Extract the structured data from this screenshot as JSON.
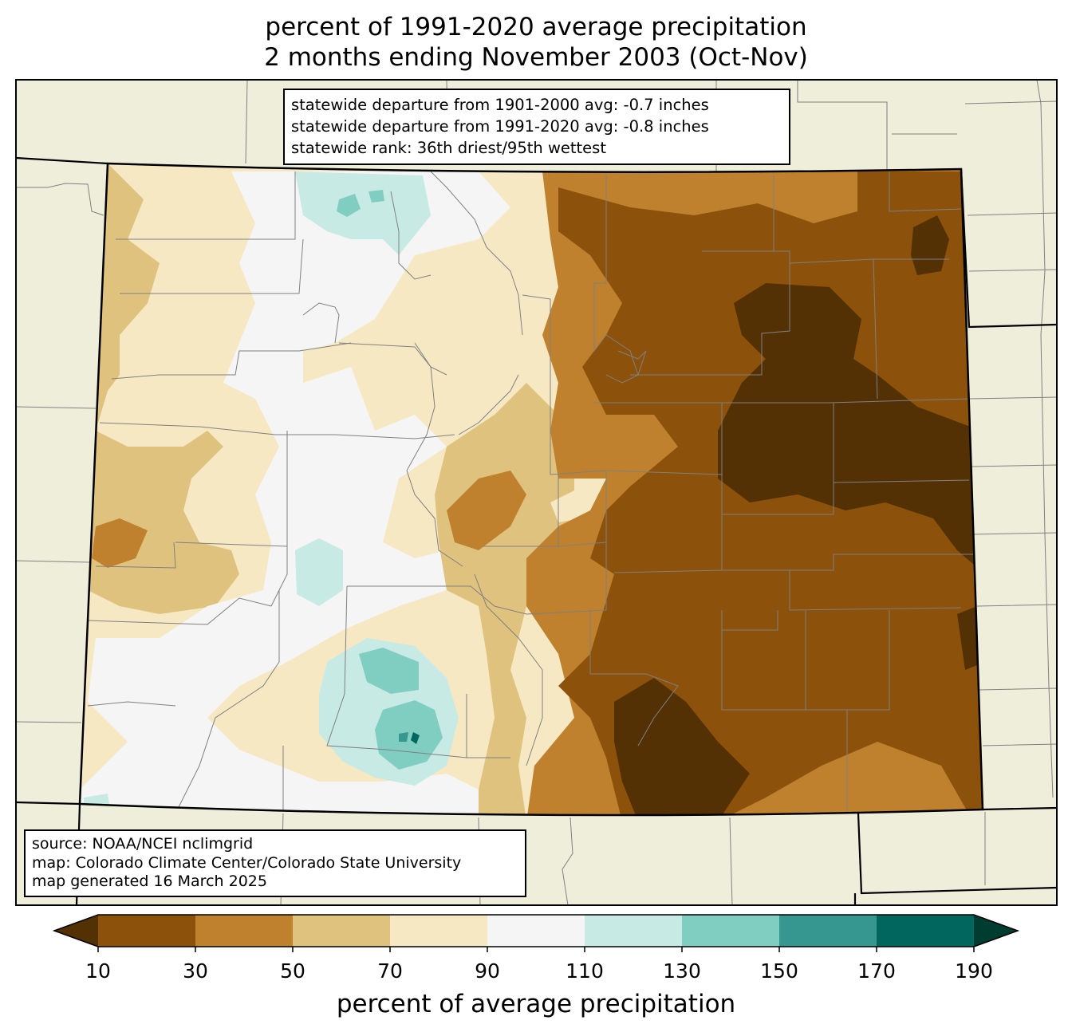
{
  "title": {
    "line1": "percent of 1991-2020 average precipitation",
    "line2": "2 months ending November 2003 (Oct-Nov)"
  },
  "stats": {
    "line1": "statewide departure from 1901-2000 avg: -0.7 inches",
    "line2": "statewide departure from 1991-2020 avg: -0.8 inches",
    "line3": "statewide rank: 36th driest/95th wettest"
  },
  "source": {
    "line1": "source: NOAA/NCEI nclimgrid",
    "line2": "map: Colorado Climate Center/Colorado State University",
    "line3": "map generated 16 March 2025"
  },
  "colorbar": {
    "label": "percent of average precipitation",
    "ticks": [
      "10",
      "30",
      "50",
      "70",
      "90",
      "110",
      "130",
      "150",
      "170",
      "190"
    ],
    "under_color": "#543005",
    "over_color": "#003c30",
    "bins": [
      {
        "min": 10,
        "max": 30,
        "color": "#8c510a"
      },
      {
        "min": 30,
        "max": 50,
        "color": "#bf812d"
      },
      {
        "min": 50,
        "max": 70,
        "color": "#dfc27d"
      },
      {
        "min": 70,
        "max": 90,
        "color": "#f6e8c3"
      },
      {
        "min": 90,
        "max": 110,
        "color": "#f5f5f5"
      },
      {
        "min": 110,
        "max": 130,
        "color": "#c7eae5"
      },
      {
        "min": 130,
        "max": 150,
        "color": "#80cdc1"
      },
      {
        "min": 150,
        "max": 170,
        "color": "#35978f"
      },
      {
        "min": 170,
        "max": 190,
        "color": "#01665e"
      }
    ]
  },
  "colors": {
    "land_background": "#efeedb",
    "state_border": "#000000",
    "county_border": "#808080"
  }
}
